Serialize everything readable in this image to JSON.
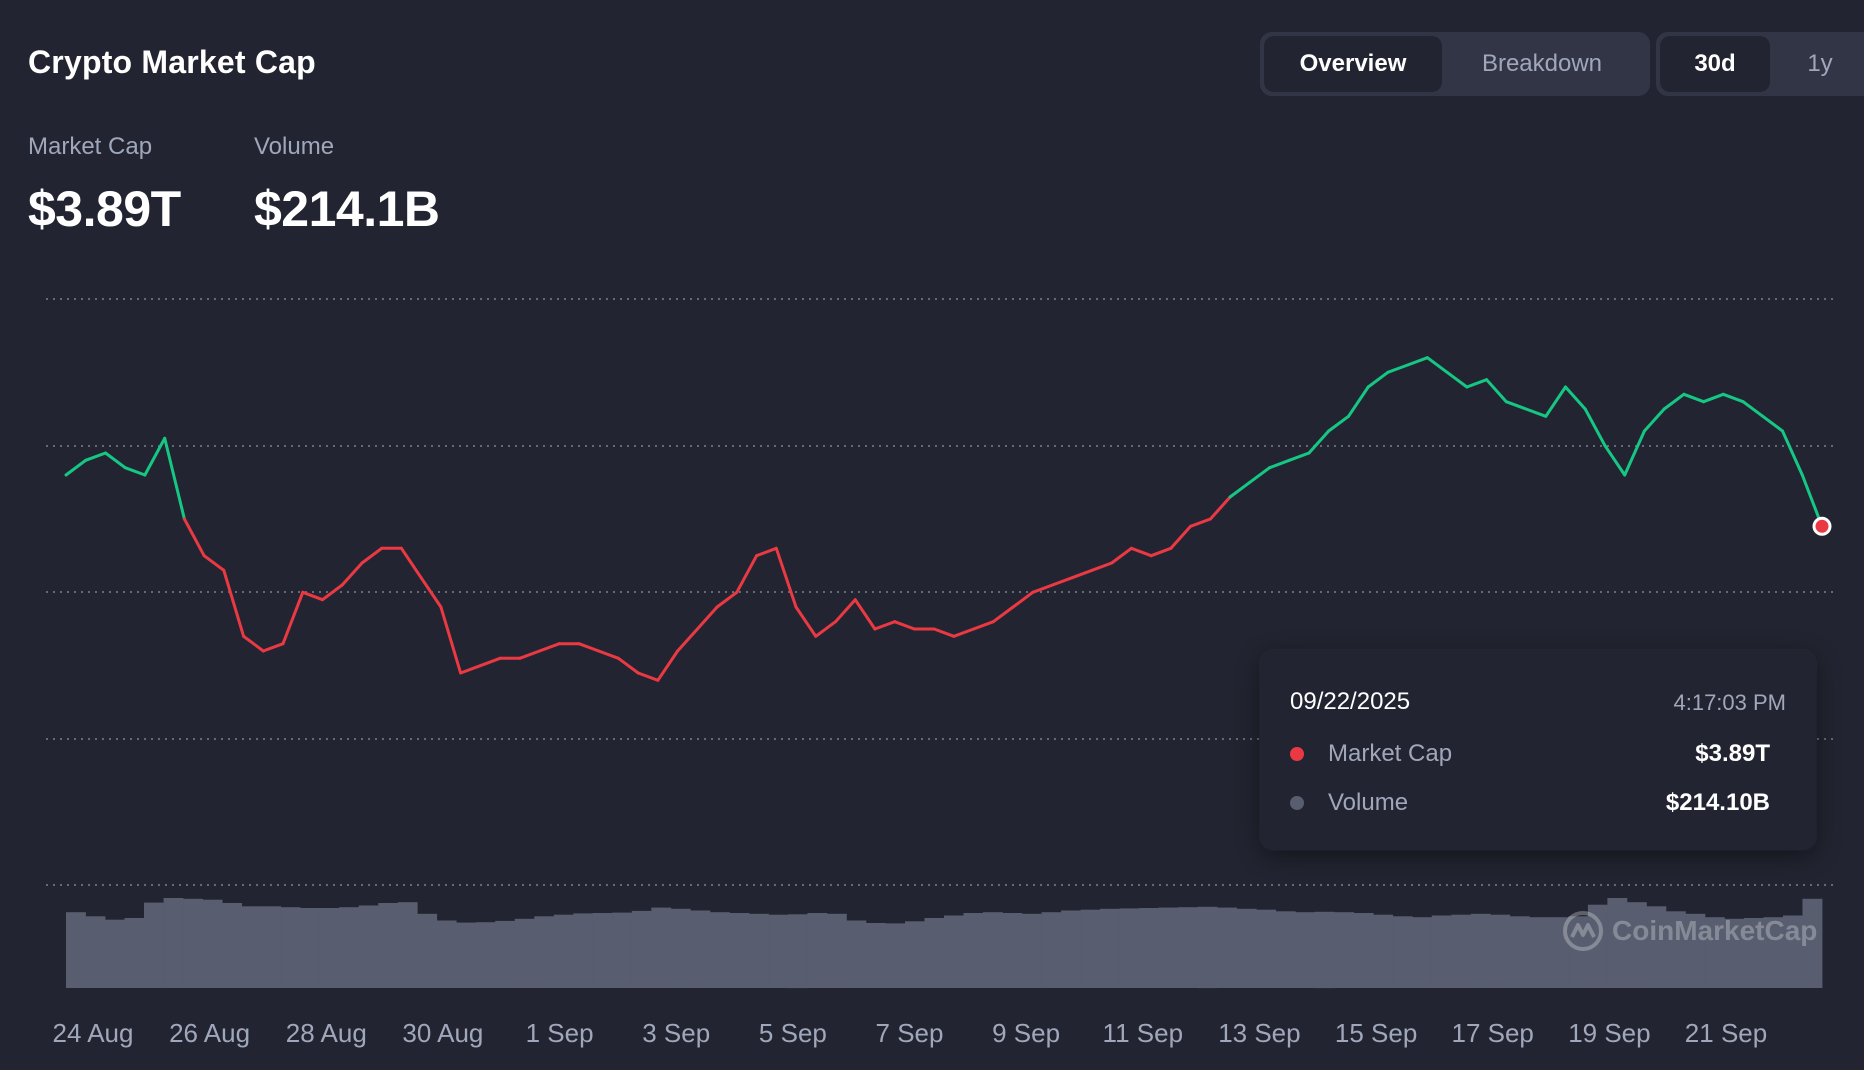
{
  "header": {
    "title": "Crypto Market Cap",
    "tabs": [
      {
        "label": "Overview",
        "active": true
      },
      {
        "label": "Breakdown",
        "active": false
      }
    ],
    "ranges": [
      {
        "label": "30d",
        "active": true
      },
      {
        "label": "1y",
        "active": false
      }
    ]
  },
  "stats": {
    "market_cap_label": "Market Cap",
    "market_cap_value": "$3.89T",
    "volume_label": "Volume",
    "volume_value": "$214.1B"
  },
  "tooltip": {
    "date": "09/22/2025",
    "time": "4:17:03 PM",
    "rows": [
      {
        "name": "Market Cap",
        "value": "$3.89T",
        "color": "#ea3943"
      },
      {
        "name": "Volume",
        "value": "$214.10B",
        "color": "#585d6f"
      }
    ]
  },
  "watermark": "CoinMarketCap",
  "colors": {
    "up": "#16c784",
    "down": "#ea3943",
    "volume": "#585d6f",
    "background": "#222531"
  },
  "chart_data": {
    "type": "line",
    "title": "",
    "xlabel": "",
    "ylabel": "",
    "x_ticks": [
      "24 Aug",
      "26 Aug",
      "28 Aug",
      "30 Aug",
      "1 Sep",
      "3 Sep",
      "5 Sep",
      "7 Sep",
      "9 Sep",
      "11 Sep",
      "13 Sep",
      "15 Sep",
      "17 Sep",
      "19 Sep",
      "21 Sep"
    ],
    "grid": "horizontal dotted",
    "baseline_value": 3.918,
    "line_color_rule": "green above baseline, red below",
    "ylim": [
      3.6,
      4.2
    ],
    "x": [
      "08/24",
      "08/24",
      "08/24",
      "08/25",
      "08/25",
      "08/25",
      "08/26",
      "08/26",
      "08/26",
      "08/27",
      "08/27",
      "08/27",
      "08/28",
      "08/28",
      "08/28",
      "08/29",
      "08/29",
      "08/29",
      "08/30",
      "08/30",
      "08/30",
      "08/31",
      "08/31",
      "08/31",
      "09/01",
      "09/01",
      "09/01",
      "09/02",
      "09/02",
      "09/02",
      "09/03",
      "09/03",
      "09/03",
      "09/04",
      "09/04",
      "09/04",
      "09/05",
      "09/05",
      "09/05",
      "09/06",
      "09/06",
      "09/06",
      "09/07",
      "09/07",
      "09/07",
      "09/08",
      "09/08",
      "09/08",
      "09/09",
      "09/09",
      "09/09",
      "09/10",
      "09/10",
      "09/10",
      "09/11",
      "09/11",
      "09/11",
      "09/12",
      "09/12",
      "09/12",
      "09/13",
      "09/13",
      "09/13",
      "09/14",
      "09/14",
      "09/14",
      "09/15",
      "09/15",
      "09/15",
      "09/16",
      "09/16",
      "09/16",
      "09/17",
      "09/17",
      "09/17",
      "09/18",
      "09/18",
      "09/18",
      "09/19",
      "09/19",
      "09/19",
      "09/20",
      "09/20",
      "09/20",
      "09/21",
      "09/21",
      "09/21",
      "09/22",
      "09/22",
      "09/22"
    ],
    "series": [
      {
        "values": [
          3.96,
          3.98,
          3.99,
          3.97,
          3.96,
          4.01,
          3.9,
          3.85,
          3.83,
          3.74,
          3.72,
          3.73,
          3.8,
          3.79,
          3.81,
          3.84,
          3.86,
          3.86,
          3.82,
          3.78,
          3.69,
          3.7,
          3.71,
          3.71,
          3.72,
          3.73,
          3.73,
          3.72,
          3.71,
          3.69,
          3.68,
          3.72,
          3.75,
          3.78,
          3.8,
          3.85,
          3.86,
          3.78,
          3.74,
          3.76,
          3.79,
          3.75,
          3.76,
          3.75,
          3.75,
          3.74,
          3.75,
          3.76,
          3.78,
          3.8,
          3.81,
          3.82,
          3.83,
          3.84,
          3.86,
          3.85,
          3.86,
          3.89,
          3.9,
          3.93,
          3.95,
          3.97,
          3.98,
          3.99,
          4.02,
          4.04,
          4.08,
          4.1,
          4.11,
          4.12,
          4.1,
          4.08,
          4.09,
          4.06,
          4.05,
          4.04,
          4.08,
          4.05,
          4.0,
          3.96,
          4.02,
          4.05,
          4.07,
          4.06,
          4.07,
          4.06,
          4.04,
          4.02,
          3.96,
          3.89
        ]
      }
    ],
    "volume_values": [
      182,
      172,
      164,
      168,
      205,
      216,
      214,
      212,
      204,
      196,
      196,
      194,
      192,
      192,
      194,
      198,
      204,
      206,
      178,
      162,
      157,
      158,
      161,
      166,
      172,
      176,
      179,
      180,
      181,
      185,
      193,
      190,
      186,
      182,
      180,
      178,
      176,
      177,
      180,
      178,
      162,
      156,
      155,
      160,
      168,
      174,
      180,
      182,
      180,
      178,
      182,
      186,
      188,
      190,
      191,
      192,
      193,
      194,
      195,
      193,
      190,
      188,
      184,
      182,
      183,
      182,
      180,
      176,
      172,
      170,
      174,
      176,
      178,
      176,
      172,
      170,
      170,
      172,
      200,
      216,
      206,
      196,
      184,
      178,
      170,
      166,
      168,
      170,
      174,
      214
    ]
  }
}
